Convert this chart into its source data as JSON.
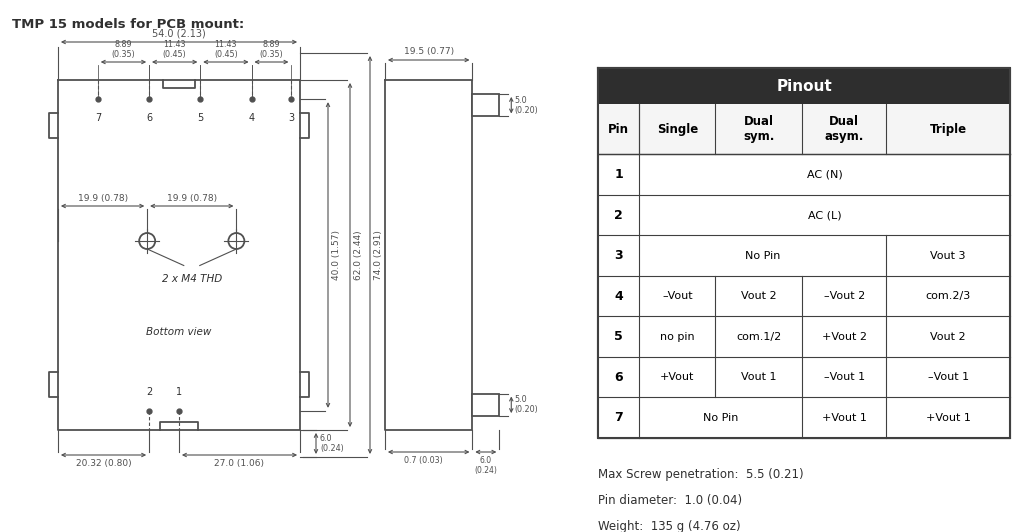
{
  "title": "TMP 15 models for PCB mount:",
  "bg_color": "#ffffff",
  "line_color": "#505050",
  "dim_color": "#505050",
  "text_color": "#303030",
  "notes": [
    "Max Screw penetration:  5.5 (0.21)",
    "Pin diameter:  1.0 (0.04)",
    "Weight:  135 g (4.76 oz)"
  ]
}
